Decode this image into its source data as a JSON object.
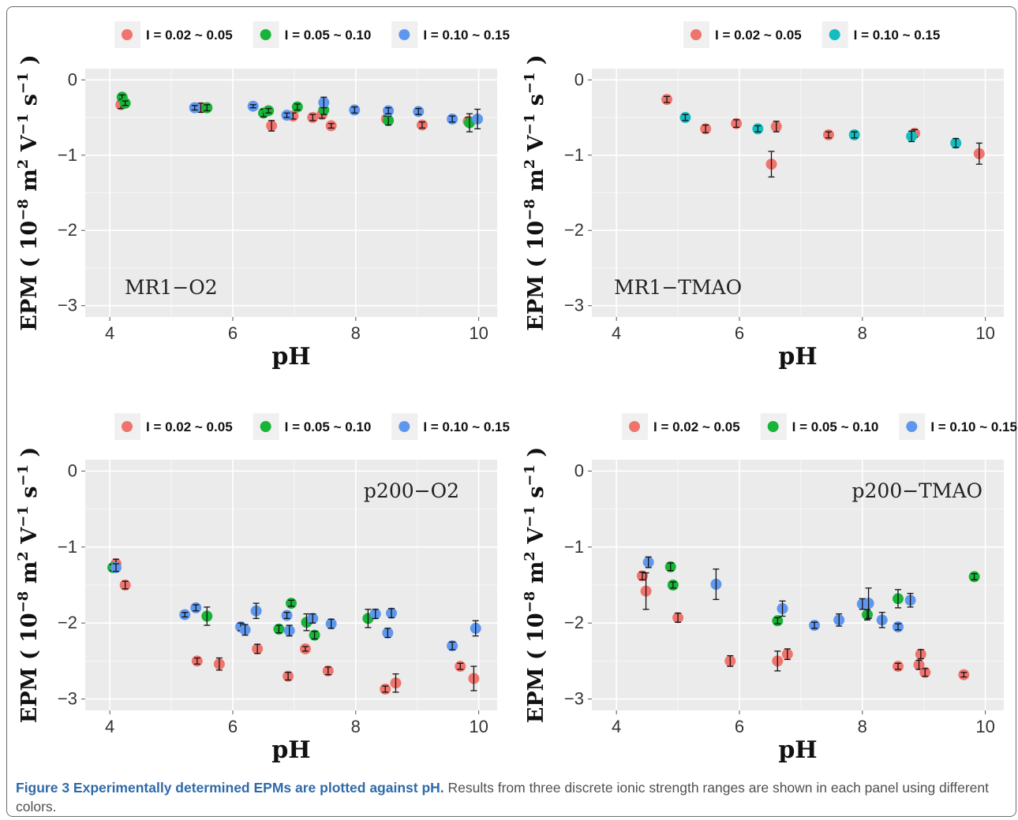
{
  "figure": {
    "caption_title": "Figure 3 Experimentally determined EPMs are plotted against pH.",
    "caption_text": " Results from three discrete ionic strength ranges are shown in each panel using different colors."
  },
  "colors": {
    "red": "#f0746e",
    "green": "#18b438",
    "blue": "#5f97ee",
    "cyan": "#14bdc0",
    "panel_bg": "#ebebeb",
    "grid": "#ffffff",
    "legend_key_bg": "#f0f0f0"
  },
  "chart_data": [
    {
      "type": "scatter",
      "panel_label": "MR1−O2",
      "xlabel": "pH",
      "ylabel": "EPM ( 10^-8 m^2 V^-1 s^-1 )",
      "xlim": [
        3.6,
        10.3
      ],
      "ylim": [
        -3.15,
        0.15
      ],
      "x_ticks": [
        "4",
        "6",
        "8",
        "10"
      ],
      "y_ticks": [
        "0",
        "−1",
        "−2",
        "−3"
      ],
      "legend": [
        "I = 0.02 ~ 0.05",
        "I = 0.05 ~ 0.10",
        "I = 0.10 ~ 0.15"
      ],
      "legend_placement": "top",
      "series": [
        {
          "name": "I = 0.02 ~ 0.05",
          "color": "red",
          "points": [
            [
              4.18,
              -0.33,
              0.05
            ],
            [
              5.48,
              -0.37,
              0.06
            ],
            [
              6.63,
              -0.61,
              0.07
            ],
            [
              6.98,
              -0.48,
              0.04
            ],
            [
              7.3,
              -0.5,
              0.04
            ],
            [
              7.45,
              -0.46,
              0.05
            ],
            [
              7.6,
              -0.61,
              0.03
            ],
            [
              8.5,
              -0.52,
              0.04
            ],
            [
              9.08,
              -0.6,
              0.04
            ],
            [
              9.83,
              -0.55,
              0.05
            ]
          ]
        },
        {
          "name": "I = 0.05 ~ 0.10",
          "color": "green",
          "points": [
            [
              4.2,
              -0.23,
              0.03
            ],
            [
              4.25,
              -0.31,
              0.03
            ],
            [
              5.58,
              -0.37,
              0.04
            ],
            [
              6.5,
              -0.44,
              0.05
            ],
            [
              6.58,
              -0.41,
              0.03
            ],
            [
              7.05,
              -0.36,
              0.04
            ],
            [
              7.48,
              -0.4,
              0.06
            ],
            [
              8.53,
              -0.54,
              0.06
            ],
            [
              9.85,
              -0.57,
              0.12
            ]
          ]
        },
        {
          "name": "I = 0.10 ~ 0.15",
          "color": "blue",
          "points": [
            [
              5.38,
              -0.37,
              0.03
            ],
            [
              6.33,
              -0.35,
              0.02
            ],
            [
              6.88,
              -0.47,
              0.03
            ],
            [
              7.48,
              -0.3,
              0.07
            ],
            [
              7.98,
              -0.4,
              0.04
            ],
            [
              8.53,
              -0.41,
              0.04
            ],
            [
              9.02,
              -0.42,
              0.04
            ],
            [
              9.57,
              -0.52,
              0.04
            ],
            [
              9.98,
              -0.52,
              0.13
            ]
          ]
        }
      ]
    },
    {
      "type": "scatter",
      "panel_label": "MR1−TMAO",
      "xlabel": "pH",
      "ylabel": "EPM ( 10^-8 m^2 V^-1 s^-1 )",
      "xlim": [
        3.6,
        10.3
      ],
      "ylim": [
        -3.15,
        0.15
      ],
      "x_ticks": [
        "4",
        "6",
        "8",
        "10"
      ],
      "y_ticks": [
        "0",
        "−1",
        "−2",
        "−3"
      ],
      "legend": [
        "I = 0.02 ~ 0.05",
        "I = 0.10 ~ 0.15"
      ],
      "legend_placement": "top",
      "series": [
        {
          "name": "I = 0.02 ~ 0.05",
          "color": "red",
          "points": [
            [
              4.82,
              -0.26,
              0.04
            ],
            [
              5.45,
              -0.65,
              0.05
            ],
            [
              5.95,
              -0.58,
              0.05
            ],
            [
              6.52,
              -1.12,
              0.17
            ],
            [
              6.6,
              -0.62,
              0.07
            ],
            [
              7.45,
              -0.73,
              0.04
            ],
            [
              8.85,
              -0.71,
              0.05
            ],
            [
              9.9,
              -0.98,
              0.14
            ]
          ]
        },
        {
          "name": "I = 0.10 ~ 0.15",
          "color": "cyan",
          "points": [
            [
              5.12,
              -0.5,
              0.04
            ],
            [
              6.3,
              -0.65,
              0.04
            ],
            [
              7.87,
              -0.73,
              0.04
            ],
            [
              8.8,
              -0.75,
              0.07
            ],
            [
              9.52,
              -0.84,
              0.06
            ]
          ]
        }
      ]
    },
    {
      "type": "scatter",
      "panel_label": "p200−O2",
      "xlabel": "pH",
      "ylabel": "EPM ( 10^-8 m^2 V^-1 s^-1 )",
      "xlim": [
        3.6,
        10.3
      ],
      "ylim": [
        -3.15,
        0.15
      ],
      "x_ticks": [
        "4",
        "6",
        "8",
        "10"
      ],
      "y_ticks": [
        "0",
        "−1",
        "−2",
        "−3"
      ],
      "legend": [
        "I = 0.02 ~ 0.05",
        "I = 0.05 ~ 0.10",
        "I = 0.10 ~ 0.15"
      ],
      "legend_placement": "top",
      "series": [
        {
          "name": "I = 0.02 ~ 0.05",
          "color": "red",
          "points": [
            [
              4.1,
              -1.22,
              0.06
            ],
            [
              4.25,
              -1.5,
              0.05
            ],
            [
              5.42,
              -2.5,
              0.04
            ],
            [
              5.78,
              -2.54,
              0.08
            ],
            [
              6.4,
              -2.34,
              0.06
            ],
            [
              6.9,
              -2.7,
              0.05
            ],
            [
              7.18,
              -2.34,
              0.03
            ],
            [
              7.55,
              -2.63,
              0.05
            ],
            [
              8.48,
              -2.87,
              0.04
            ],
            [
              8.65,
              -2.79,
              0.12
            ],
            [
              9.7,
              -2.57,
              0.04
            ],
            [
              9.92,
              -2.73,
              0.16
            ]
          ]
        },
        {
          "name": "I = 0.05 ~ 0.10",
          "color": "green",
          "points": [
            [
              4.05,
              -1.27,
              0.04
            ],
            [
              5.58,
              -1.91,
              0.12
            ],
            [
              6.75,
              -2.08,
              0.05
            ],
            [
              6.95,
              -1.74,
              0.04
            ],
            [
              7.2,
              -1.99,
              0.11
            ],
            [
              7.33,
              -2.16,
              0.05
            ],
            [
              8.2,
              -1.94,
              0.12
            ]
          ]
        },
        {
          "name": "I = 0.10 ~ 0.15",
          "color": "blue",
          "points": [
            [
              4.1,
              -1.27,
              0.05
            ],
            [
              5.22,
              -1.89,
              0.03
            ],
            [
              5.4,
              -1.8,
              0.04
            ],
            [
              6.13,
              -2.05,
              0.05
            ],
            [
              6.2,
              -2.09,
              0.07
            ],
            [
              6.38,
              -1.84,
              0.1
            ],
            [
              6.88,
              -1.9,
              0.04
            ],
            [
              6.92,
              -2.1,
              0.07
            ],
            [
              7.3,
              -1.94,
              0.06
            ],
            [
              7.6,
              -2.01,
              0.06
            ],
            [
              8.32,
              -1.88,
              0.06
            ],
            [
              8.52,
              -2.13,
              0.06
            ],
            [
              8.58,
              -1.87,
              0.06
            ],
            [
              9.57,
              -2.3,
              0.05
            ],
            [
              9.95,
              -2.07,
              0.1
            ]
          ]
        }
      ]
    },
    {
      "type": "scatter",
      "panel_label": "p200−TMAO",
      "xlabel": "pH",
      "ylabel": "EPM ( 10^-8 m^2 V^-1 s^-1 )",
      "xlim": [
        3.6,
        10.3
      ],
      "ylim": [
        -3.15,
        0.15
      ],
      "x_ticks": [
        "4",
        "6",
        "8",
        "10"
      ],
      "y_ticks": [
        "0",
        "−1",
        "−2",
        "−3"
      ],
      "legend": [
        "I = 0.02 ~ 0.05",
        "I = 0.05 ~ 0.10",
        "I = 0.10 ~ 0.15"
      ],
      "legend_placement": "top",
      "series": [
        {
          "name": "I = 0.02 ~ 0.05",
          "color": "red",
          "points": [
            [
              4.42,
              -1.38,
              0.05
            ],
            [
              4.48,
              -1.58,
              0.24
            ],
            [
              5.0,
              -1.93,
              0.06
            ],
            [
              5.85,
              -2.5,
              0.07
            ],
            [
              6.62,
              -2.5,
              0.13
            ],
            [
              6.78,
              -2.41,
              0.07
            ],
            [
              8.58,
              -2.57,
              0.04
            ],
            [
              8.92,
              -2.55,
              0.06
            ],
            [
              8.95,
              -2.41,
              0.06
            ],
            [
              9.02,
              -2.65,
              0.05
            ],
            [
              9.65,
              -2.68,
              0.03
            ]
          ]
        },
        {
          "name": "I = 0.05 ~ 0.10",
          "color": "green",
          "points": [
            [
              4.88,
              -1.26,
              0.05
            ],
            [
              4.92,
              -1.5,
              0.04
            ],
            [
              6.62,
              -1.97,
              0.04
            ],
            [
              8.08,
              -1.89,
              0.07
            ],
            [
              8.58,
              -1.68,
              0.12
            ],
            [
              9.82,
              -1.39,
              0.04
            ]
          ]
        },
        {
          "name": "I = 0.10 ~ 0.15",
          "color": "blue",
          "points": [
            [
              4.52,
              -1.2,
              0.07
            ],
            [
              5.62,
              -1.49,
              0.2
            ],
            [
              6.7,
              -1.81,
              0.1
            ],
            [
              7.22,
              -2.03,
              0.04
            ],
            [
              7.62,
              -1.96,
              0.08
            ],
            [
              8.0,
              -1.75,
              0.07
            ],
            [
              8.1,
              -1.74,
              0.2
            ],
            [
              8.32,
              -1.96,
              0.1
            ],
            [
              8.58,
              -2.05,
              0.04
            ],
            [
              8.78,
              -1.7,
              0.09
            ]
          ]
        }
      ]
    }
  ]
}
